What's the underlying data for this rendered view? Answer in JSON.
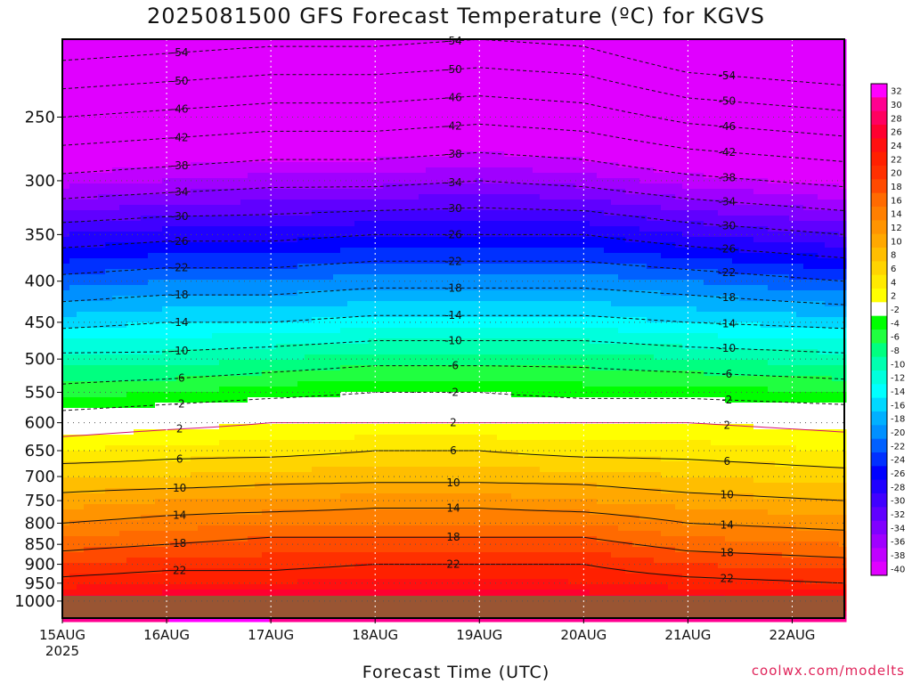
{
  "page": {
    "title": "2025081500 GFS Forecast Temperature (ºC) for KGVS",
    "credit": "coolwx.com/modelts"
  },
  "chart_data": {
    "type": "heatmap",
    "title": "2025081500 GFS Forecast Temperature (ºC) for KGVS",
    "xlabel": "Forecast Time (UTC)",
    "ylabel": "",
    "x_ticks": [
      "15AUG",
      "16AUG",
      "17AUG",
      "18AUG",
      "19AUG",
      "20AUG",
      "21AUG",
      "22AUG"
    ],
    "x_year_label": "2025",
    "xlim_days": [
      0,
      7.5
    ],
    "y_ticks": [
      250,
      300,
      350,
      400,
      450,
      500,
      550,
      600,
      650,
      700,
      750,
      800,
      850,
      900,
      950,
      1000
    ],
    "ylim": [
      1050,
      200
    ],
    "y_scale": "log",
    "grid": true,
    "colorbar": {
      "levels": [
        32,
        30,
        28,
        26,
        24,
        22,
        20,
        18,
        16,
        14,
        12,
        10,
        8,
        6,
        4,
        2,
        -2,
        -4,
        -6,
        -8,
        -10,
        -12,
        -14,
        -16,
        -18,
        -20,
        -22,
        -24,
        -26,
        -28,
        -30,
        -32,
        -34,
        -36,
        -38,
        -40
      ],
      "colors": [
        "#ff00ff",
        "#ff0090",
        "#ff0060",
        "#ff0030",
        "#ff1010",
        "#ff2000",
        "#ff3000",
        "#ff4a00",
        "#ff6a00",
        "#ff7f00",
        "#ff9400",
        "#ffa800",
        "#ffbe00",
        "#ffd400",
        "#ffea00",
        "#ffff00",
        "#ffffff",
        "#00ff00",
        "#20ff40",
        "#00ff80",
        "#00ffb0",
        "#00ffdd",
        "#00ffff",
        "#00d8ff",
        "#00b0ff",
        "#0090ff",
        "#0060ff",
        "#0030ff",
        "#0000ff",
        "#2000ff",
        "#4000ff",
        "#6000ff",
        "#8000ff",
        "#a000ff",
        "#c000ff",
        "#e000ff"
      ]
    },
    "profiles": [
      {
        "day": 0.0,
        "pressure": [
          1000,
          950,
          900,
          850,
          800,
          750,
          700,
          650,
          600,
          550,
          500,
          450,
          400,
          350,
          300,
          250
        ],
        "temperature": [
          27,
          23,
          20,
          17,
          14,
          11,
          8,
          4,
          0,
          -5,
          -9,
          -15,
          -21,
          -28,
          -37,
          -46
        ]
      },
      {
        "day": 1.0,
        "pressure": [
          1000,
          950,
          900,
          850,
          800,
          750,
          700,
          650,
          600,
          550,
          500,
          450,
          400,
          350,
          300,
          250
        ],
        "temperature": [
          28,
          24,
          21,
          18,
          15,
          12,
          8,
          5,
          1,
          -4,
          -9,
          -14,
          -20,
          -27,
          -36,
          -45
        ]
      },
      {
        "day": 2.0,
        "pressure": [
          1000,
          950,
          900,
          850,
          800,
          750,
          700,
          650,
          600,
          550,
          500,
          450,
          400,
          350,
          300,
          250
        ],
        "temperature": [
          28,
          24,
          21,
          19,
          16,
          12,
          9,
          5,
          2,
          -3,
          -8,
          -14,
          -20,
          -27,
          -35,
          -44
        ]
      },
      {
        "day": 3.0,
        "pressure": [
          1000,
          950,
          900,
          850,
          800,
          750,
          700,
          650,
          600,
          550,
          500,
          450,
          400,
          350,
          300,
          250
        ],
        "temperature": [
          28,
          25,
          22,
          19,
          16,
          13,
          9,
          6,
          2,
          -2,
          -7,
          -13,
          -19,
          -26,
          -35,
          -44
        ]
      },
      {
        "day": 4.0,
        "pressure": [
          1000,
          950,
          900,
          850,
          800,
          750,
          700,
          650,
          600,
          550,
          500,
          450,
          400,
          350,
          300,
          250
        ],
        "temperature": [
          28,
          25,
          22,
          19,
          16,
          13,
          9,
          6,
          2,
          -2,
          -7,
          -13,
          -19,
          -26,
          -34,
          -43
        ]
      },
      {
        "day": 5.0,
        "pressure": [
          1000,
          950,
          900,
          850,
          800,
          750,
          700,
          650,
          600,
          550,
          500,
          450,
          400,
          350,
          300,
          250
        ],
        "temperature": [
          28,
          24,
          22,
          19,
          16,
          12,
          9,
          5,
          2,
          -3,
          -7,
          -13,
          -19,
          -26,
          -35,
          -44
        ]
      },
      {
        "day": 6.0,
        "pressure": [
          1000,
          950,
          900,
          850,
          800,
          750,
          700,
          650,
          600,
          550,
          500,
          450,
          400,
          350,
          300,
          250
        ],
        "temperature": [
          27,
          23,
          20,
          17,
          14,
          11,
          8,
          5,
          2,
          -3,
          -8,
          -14,
          -20,
          -28,
          -37,
          -47
        ]
      },
      {
        "day": 7.5,
        "pressure": [
          1000,
          950,
          900,
          850,
          800,
          750,
          700,
          650,
          600,
          550,
          500,
          450,
          400,
          350,
          300,
          250
        ],
        "temperature": [
          26,
          22,
          19,
          16,
          13,
          10,
          7,
          4,
          1,
          -4,
          -9,
          -15,
          -22,
          -30,
          -39,
          -49
        ]
      }
    ]
  }
}
